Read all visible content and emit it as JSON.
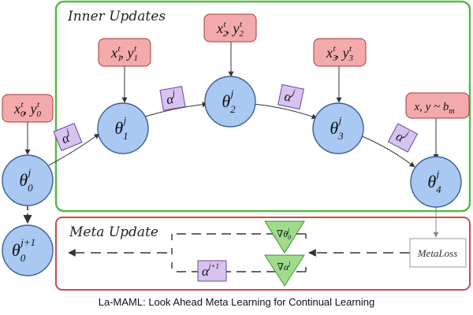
{
  "inner_box": {
    "title": "Inner Updates",
    "color": "#55bb44"
  },
  "meta_box": {
    "title": "Meta Update",
    "color": "#c84c4c"
  },
  "colors": {
    "node_fill": "#a9c8f2",
    "node_stroke": "#3b5f94",
    "data_fill": "#f4aaaa",
    "data_stroke": "#a33a3a",
    "alpha_fill": "#d7c2f0",
    "alpha_stroke": "#6a4a99",
    "grad_fill": "#9edc8c",
    "grad_stroke": "#4a8a3a"
  },
  "nodes": {
    "theta0": {
      "sym": "θ",
      "sup": "j",
      "sub": "0"
    },
    "theta1": {
      "sym": "θ",
      "sup": "j",
      "sub": "1"
    },
    "theta2": {
      "sym": "θ",
      "sup": "j",
      "sub": "2"
    },
    "theta3": {
      "sym": "θ",
      "sup": "j",
      "sub": "3"
    },
    "theta4": {
      "sym": "θ",
      "sup": "j",
      "sub": "4"
    },
    "theta_next": {
      "sym": "θ",
      "sup": "j+1",
      "sub": "0"
    }
  },
  "data_inputs": {
    "d0": {
      "x": "x",
      "y": "y",
      "sup": "t",
      "sub": "0"
    },
    "d1": {
      "x": "x",
      "y": "y",
      "sup": "t",
      "sub": "1"
    },
    "d2": {
      "x": "x",
      "y": "y",
      "sup": "t",
      "sub": "2"
    },
    "d3": {
      "x": "x",
      "y": "y",
      "sup": "t",
      "sub": "3"
    },
    "dm": {
      "text": "x, y ~ b",
      "sub": "m"
    }
  },
  "alphas": {
    "sym": "α",
    "sup": "j"
  },
  "alpha_next": {
    "sym": "α",
    "sup": "j+1"
  },
  "meta_loss": "MetaLoss",
  "grad_theta": {
    "nabla": "∇",
    "sym": "θ",
    "sup": "j",
    "sub": "0"
  },
  "grad_alpha": {
    "nabla": "∇",
    "sym": "α",
    "sup": "j"
  },
  "caption": "La-MAML: Look Ahead Meta Learning for Continual Learning"
}
